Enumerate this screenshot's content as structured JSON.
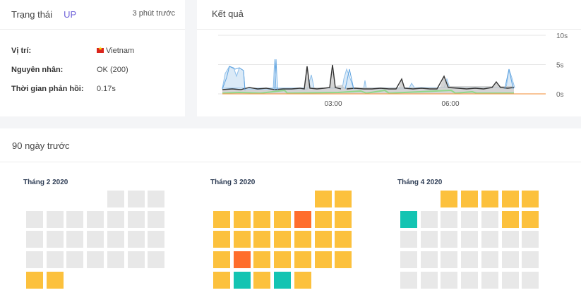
{
  "status": {
    "title": "Trạng thái",
    "state": "UP",
    "updated": "3 phút trước",
    "location_label": "Vị trí:",
    "location_value": "Vietnam",
    "reason_label": "Nguyên nhân:",
    "reason_value": "OK (200)",
    "response_label": "Thời gian phản hồi:",
    "response_value": "0.17s"
  },
  "result": {
    "title": "Kết quả",
    "chart_data": {
      "type": "area",
      "x_ticks": [
        "03:00",
        "06:00"
      ],
      "y_ticks": [
        "10s",
        "5s",
        "0s"
      ],
      "ylim": [
        0,
        10
      ],
      "legend": "none",
      "grid": true,
      "series_colors": [
        "#333333",
        "#9ec9ef",
        "#8fd88a",
        "#f5a25a"
      ]
    }
  },
  "history": {
    "title": "90 ngày trước",
    "colors": {
      "none": "#e8e8e8",
      "ok": "#fcc13d",
      "bad": "#ff6d2c",
      "good": "#14c4b2"
    },
    "months": [
      {
        "label": "Tháng 2 2020",
        "rows": [
          [
            "",
            "",
            "",
            "",
            "none",
            "none",
            "none"
          ],
          [
            "none",
            "none",
            "none",
            "none",
            "none",
            "none",
            "none"
          ],
          [
            "none",
            "none",
            "none",
            "none",
            "none",
            "none",
            "none"
          ],
          [
            "none",
            "none",
            "none",
            "none",
            "none",
            "none",
            "none"
          ],
          [
            "ok",
            "ok",
            "",
            "",
            "",
            "",
            ""
          ]
        ]
      },
      {
        "label": "Tháng 3 2020",
        "rows": [
          [
            "",
            "",
            "",
            "",
            "",
            "ok",
            "ok"
          ],
          [
            "ok",
            "ok",
            "ok",
            "ok",
            "bad",
            "ok",
            "ok"
          ],
          [
            "ok",
            "ok",
            "ok",
            "ok",
            "ok",
            "ok",
            "ok"
          ],
          [
            "ok",
            "bad",
            "ok",
            "ok",
            "ok",
            "ok",
            "ok"
          ],
          [
            "ok",
            "good",
            "ok",
            "good",
            "ok",
            "",
            ""
          ]
        ]
      },
      {
        "label": "Tháng 4 2020",
        "rows": [
          [
            "",
            "",
            "ok",
            "ok",
            "ok",
            "ok",
            "ok"
          ],
          [
            "good",
            "none",
            "none",
            "none",
            "none",
            "ok",
            "ok"
          ],
          [
            "none",
            "none",
            "none",
            "none",
            "none",
            "none",
            "none"
          ],
          [
            "none",
            "none",
            "none",
            "none",
            "none",
            "none",
            "none"
          ],
          [
            "none",
            "none",
            "none",
            "none",
            "none",
            "none",
            "none"
          ]
        ]
      }
    ]
  }
}
